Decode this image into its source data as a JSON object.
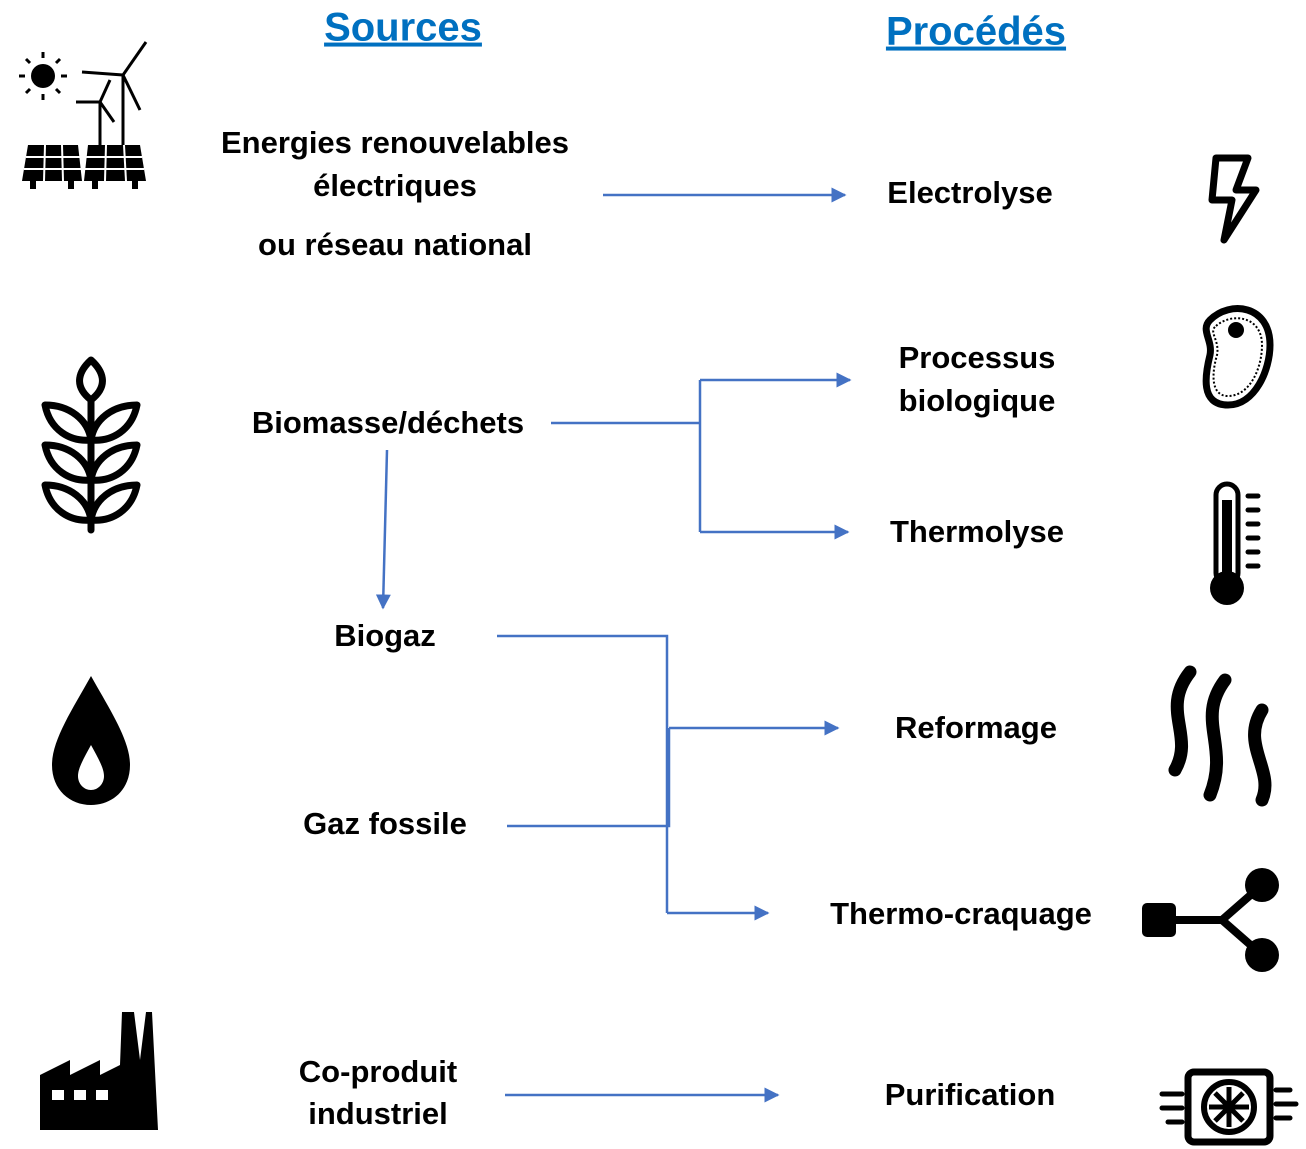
{
  "headers": {
    "sources": "Sources",
    "processes": "Procédés"
  },
  "sources": [
    {
      "lines": [
        "Energies renouvelables",
        "électriques",
        "ou réseau national"
      ]
    },
    {
      "lines": [
        "Biomasse/déchets"
      ]
    },
    {
      "lines": [
        "Biogaz"
      ]
    },
    {
      "lines": [
        "Gaz fossile"
      ]
    },
    {
      "lines": [
        "Co-produit",
        "industriel"
      ]
    }
  ],
  "processes": [
    {
      "lines": [
        "Electrolyse"
      ]
    },
    {
      "lines": [
        "Processus",
        "biologique"
      ]
    },
    {
      "lines": [
        "Thermolyse"
      ]
    },
    {
      "lines": [
        "Reformage"
      ]
    },
    {
      "lines": [
        "Thermo-craquage"
      ]
    },
    {
      "lines": [
        "Purification"
      ]
    }
  ]
}
